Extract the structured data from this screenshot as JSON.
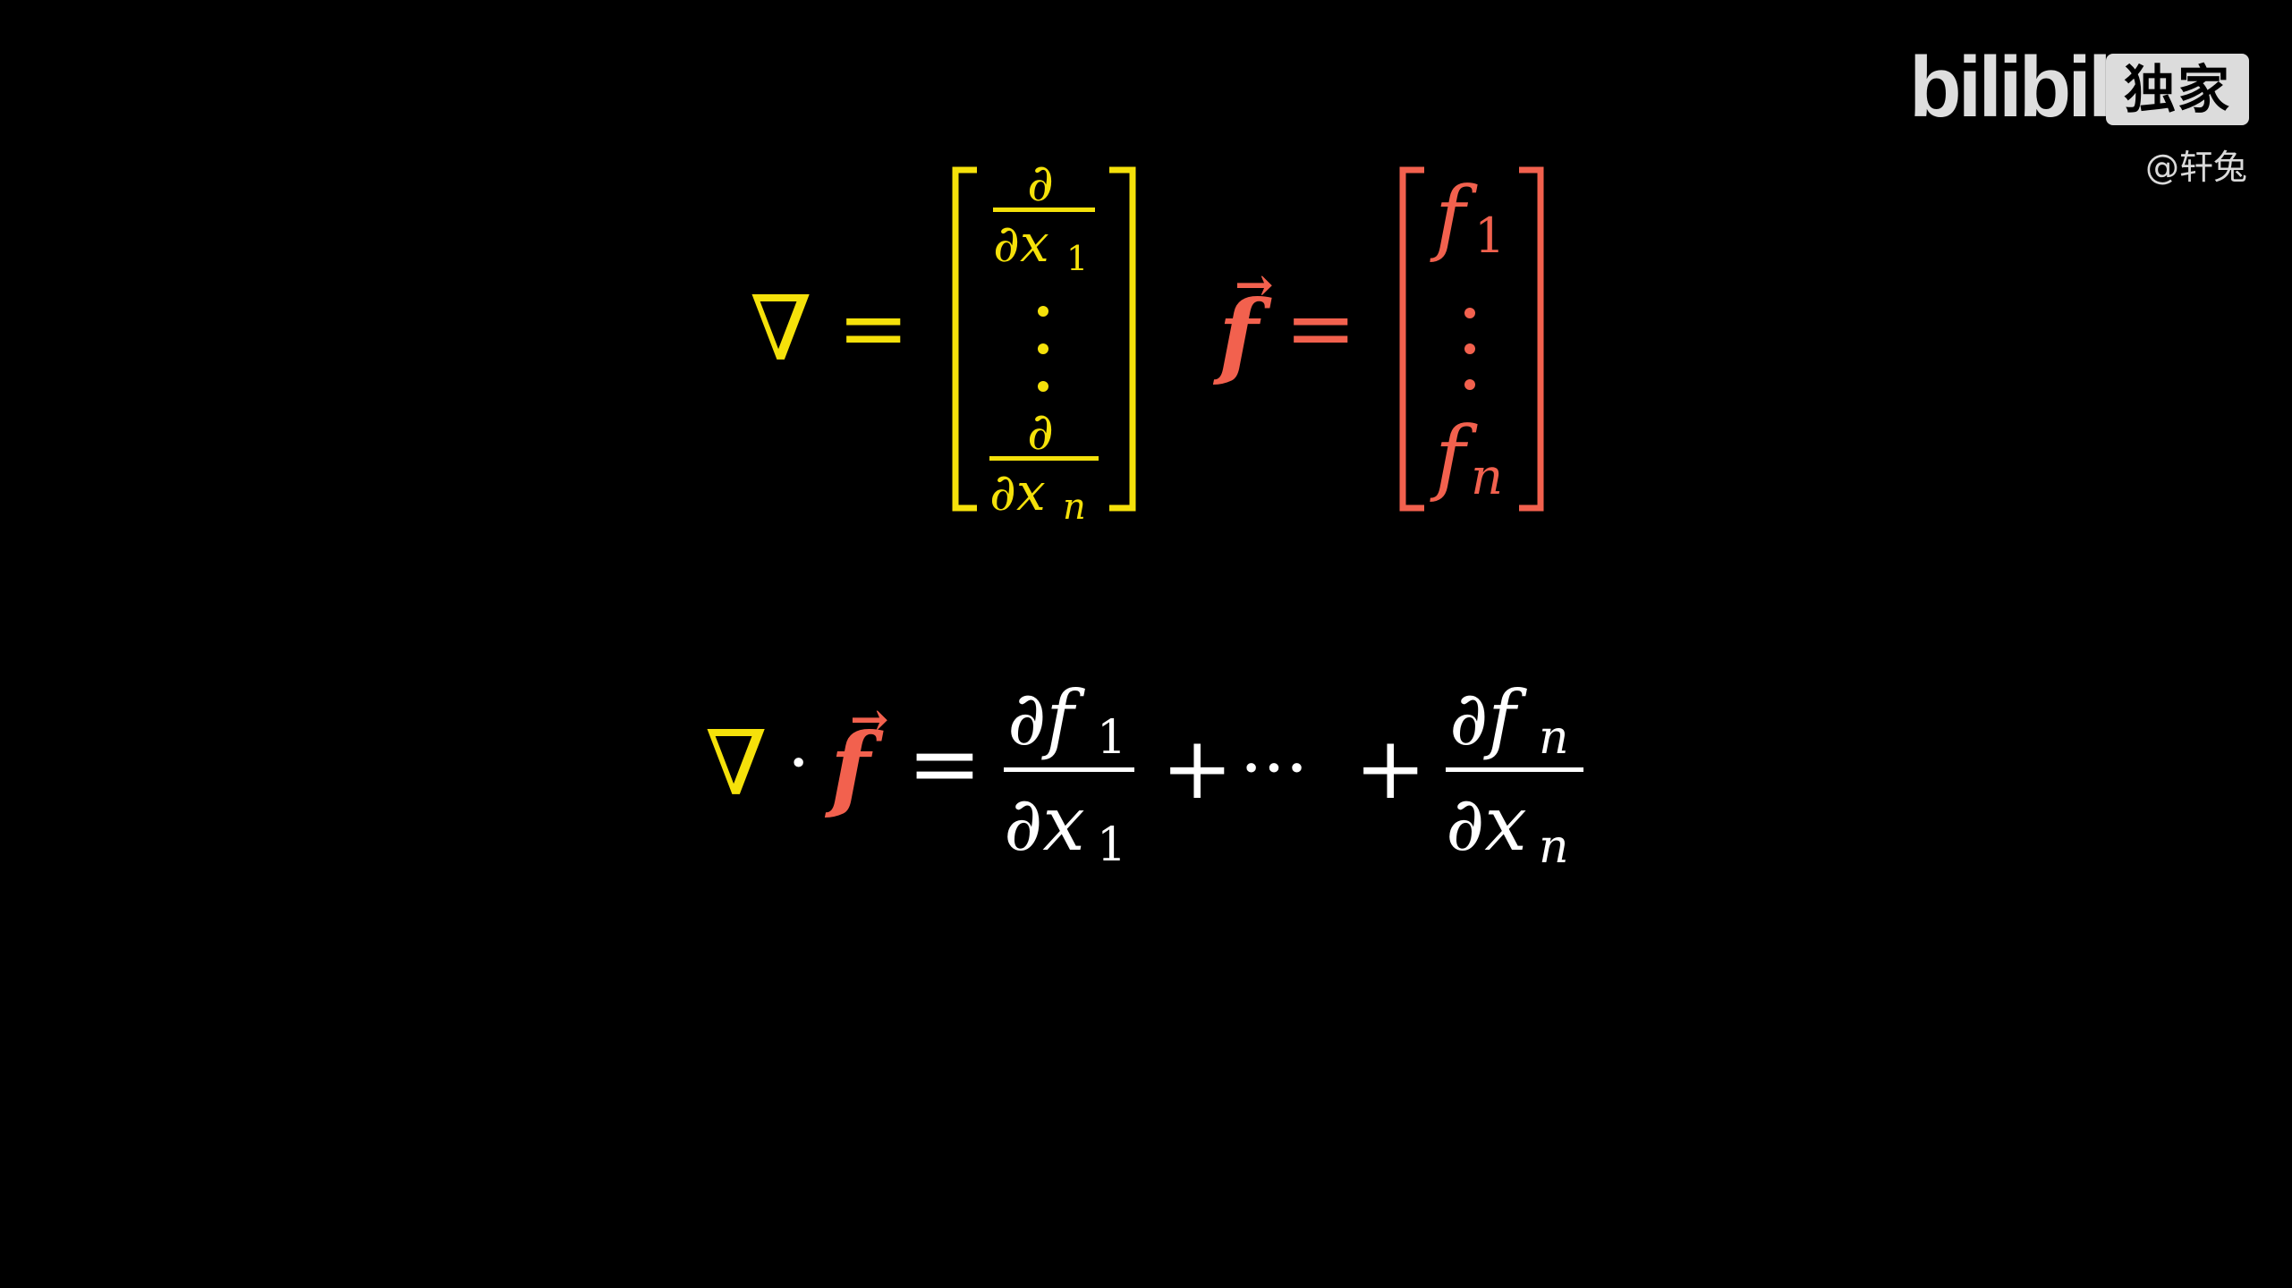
{
  "watermark": {
    "brand": "bilibili",
    "badge": "独家",
    "handle": "@轩兔"
  },
  "colors": {
    "background": "#000000",
    "nabla": "#f5e10a",
    "vector": "#f2614e",
    "text": "#ffffff"
  },
  "top_equations": {
    "nabla_symbol": "∇",
    "equals": "=",
    "partial": "∂",
    "dx1": "∂x",
    "sub1": "1",
    "dxn": "∂x",
    "subn": "n",
    "vdots": "⋮",
    "vec_f": "f",
    "arrow": "→",
    "f": "f",
    "f1_sub": "1",
    "fn_sub": "n"
  },
  "divergence": {
    "nabla_symbol": "∇",
    "dot": "·",
    "vec_f": "f",
    "arrow": "→",
    "equals": "=",
    "num1": "∂f",
    "num1_sub": "1",
    "den1": "∂x",
    "den1_sub": "1",
    "plus1": "+",
    "cdots": "···",
    "plus2": "+",
    "numn": "∂f",
    "numn_sub": "n",
    "denn": "∂x",
    "denn_sub": "n"
  }
}
